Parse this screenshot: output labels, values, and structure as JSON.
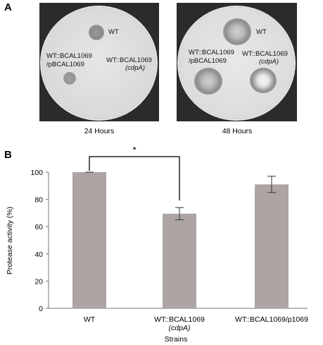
{
  "panels": {
    "a": "A",
    "b": "B"
  },
  "photos": [
    {
      "caption": "24 Hours",
      "labels": {
        "wt": "WT",
        "complemented_line1": "WT::BCAL1069",
        "complemented_line2": "/pBCAL1069",
        "mutant_line1": "WT::BCAL1069",
        "mutant_line2": "(cdpA)"
      }
    },
    {
      "caption": "48 Hours",
      "labels": {
        "wt": "WT",
        "complemented_line1": "WT::BCAL1069",
        "complemented_line2": "/pBCAL1069",
        "mutant_line1": "WT::BCAL1069",
        "mutant_line2": "(cdpA)"
      }
    }
  ],
  "chart_data": {
    "type": "bar",
    "categories": [
      "WT",
      "WT::BCAL1069 (cdpA)",
      "WT::BCAL1069/p1069"
    ],
    "tick_labels": [
      {
        "line1": "WT",
        "line2": ""
      },
      {
        "line1": "WT::BCAL1069",
        "line2": "(cdpA)"
      },
      {
        "line1": "WT::BCAL1069/p1069",
        "line2": ""
      }
    ],
    "values": [
      100,
      69.5,
      91
    ],
    "error": [
      0,
      4.5,
      6
    ],
    "ylabel": "Protease activity (%)",
    "xlabel": "Strains",
    "ylim": [
      0,
      100
    ],
    "yticks": [
      0,
      20,
      40,
      60,
      80,
      100
    ],
    "significance": {
      "between": [
        0,
        1
      ],
      "label": "*"
    },
    "bar_color": "#ada5a3",
    "grid": false
  },
  "colors": {
    "plate_bg": "#d6d6d6",
    "plate_center": "#e4e4e4",
    "colony": "#8a8a8a",
    "halo": "#a8a8a8"
  }
}
